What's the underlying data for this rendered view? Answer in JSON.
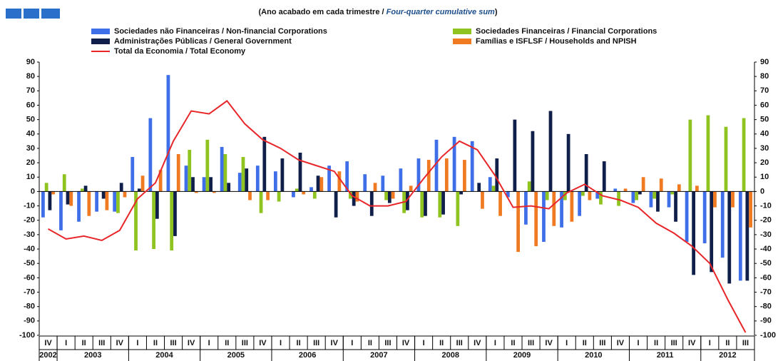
{
  "chart_data": {
    "type": "bar",
    "subtitle": [
      "(Ano acabado em cada trimestre / ",
      "Four-quarter cumulative sum",
      ")"
    ],
    "categories": [
      "IV",
      "I",
      "II",
      "III",
      "IV",
      "I",
      "II",
      "III",
      "IV",
      "I",
      "II",
      "III",
      "IV",
      "I",
      "II",
      "III",
      "IV",
      "I",
      "II",
      "III",
      "IV",
      "I",
      "II",
      "III",
      "IV",
      "I",
      "II",
      "III",
      "IV",
      "I",
      "II",
      "III",
      "IV",
      "I",
      "II",
      "III",
      "IV",
      "I",
      "II",
      "III"
    ],
    "years": [
      "2002",
      "2003",
      "2004",
      "2005",
      "2006",
      "2007",
      "2008",
      "2009",
      "2010",
      "2011",
      "2012"
    ],
    "ylim": [
      -100,
      90
    ],
    "yticks": [
      -100,
      -90,
      -80,
      -70,
      -60,
      -50,
      -40,
      -30,
      -20,
      -10,
      0,
      10,
      20,
      30,
      40,
      50,
      60,
      70,
      80,
      90
    ],
    "legend": "top",
    "series": [
      {
        "name": "Sociedades não Financeiras / Non-financial Corporations",
        "color": "#3f6fe8",
        "values": [
          -18,
          -27,
          -21,
          -14,
          -14,
          24,
          51,
          81,
          18,
          10,
          31,
          13,
          18,
          14,
          -4,
          3,
          18,
          21,
          12,
          11,
          16,
          23,
          36,
          38,
          35,
          10,
          -4,
          -23,
          -35,
          -25,
          -17,
          -5,
          2,
          -8,
          -11,
          -11,
          -35,
          -36,
          -46,
          -62
        ]
      },
      {
        "name": "Sociedades Financeiras / Financial Corporations",
        "color": "#8fc31f",
        "values": [
          6,
          12,
          2,
          0,
          -15,
          -41,
          -40,
          -41,
          29,
          36,
          26,
          24,
          -15,
          -7,
          2,
          -5,
          0,
          -5,
          0,
          -6,
          -15,
          -18,
          -18,
          -24,
          0,
          4,
          0,
          7,
          -6,
          -6,
          -3,
          -9,
          -10,
          -6,
          -5,
          -2,
          50,
          53,
          45,
          51
        ]
      },
      {
        "name": "Administrações Públicas / General Government",
        "color": "#0f1f4a",
        "values": [
          -13,
          -9,
          4,
          -5,
          6,
          2,
          -19,
          -31,
          10,
          10,
          6,
          16,
          38,
          23,
          27,
          11,
          -18,
          -10,
          -17,
          -8,
          -13,
          -17,
          -16,
          -2,
          6,
          23,
          50,
          42,
          56,
          40,
          26,
          21,
          0,
          -2,
          -14,
          -21,
          -58,
          -56,
          -64,
          -62
        ]
      },
      {
        "name": "Famílias e ISFLSF / Households and NPISH",
        "color": "#f07a22",
        "values": [
          -2,
          -10,
          -17,
          -13,
          -4,
          11,
          15,
          26,
          -1,
          -1,
          0,
          -6,
          -6,
          0,
          -2,
          10,
          14,
          -7,
          6,
          -5,
          4,
          22,
          23,
          22,
          -12,
          -17,
          -42,
          -38,
          -24,
          -21,
          -6,
          0,
          2,
          10,
          9,
          5,
          4,
          -11,
          -11,
          -25
        ]
      },
      {
        "name": "Total da Economia / Total Economy",
        "color": "#e8262a",
        "type": "line",
        "values": [
          -26,
          -33,
          -31,
          -34,
          -27,
          -5,
          6,
          35,
          56,
          54,
          63,
          47,
          36,
          30,
          22,
          18,
          14,
          -3,
          -10,
          -10,
          -7,
          9,
          24,
          35,
          29,
          11,
          -11,
          -10,
          -12,
          -1,
          5,
          -3,
          -6,
          -11,
          -22,
          -29,
          -38,
          -50,
          -75,
          -98
        ]
      }
    ]
  }
}
